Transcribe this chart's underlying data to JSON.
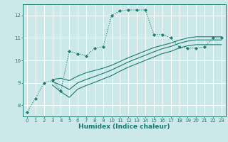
{
  "xlabel": "Humidex (Indice chaleur)",
  "bg_color": "#cce8e8",
  "grid_color": "#ffffff",
  "line_color": "#1a7a6e",
  "xlim": [
    -0.5,
    23.5
  ],
  "ylim": [
    7.5,
    12.5
  ],
  "yticks": [
    8,
    9,
    10,
    11,
    12
  ],
  "xticks": [
    0,
    1,
    2,
    3,
    4,
    5,
    6,
    7,
    8,
    9,
    10,
    11,
    12,
    13,
    14,
    15,
    16,
    17,
    18,
    19,
    20,
    21,
    22,
    23
  ],
  "series1_x": [
    0,
    1,
    2,
    3,
    4,
    5,
    6,
    7,
    8,
    9,
    10,
    11,
    12,
    13,
    14,
    15,
    16,
    17,
    18,
    19,
    20,
    21,
    22,
    23
  ],
  "series1_y": [
    7.7,
    8.3,
    9.0,
    9.1,
    8.65,
    10.4,
    10.3,
    10.2,
    10.55,
    10.6,
    12.0,
    12.2,
    12.25,
    12.25,
    12.25,
    11.15,
    11.15,
    11.0,
    10.6,
    10.55,
    10.55,
    10.6,
    11.0,
    11.0
  ],
  "series2_x": [
    3,
    4,
    5,
    6,
    7,
    8,
    9,
    10,
    11,
    12,
    13,
    14,
    15,
    16,
    17,
    18,
    19,
    20,
    21,
    22,
    23
  ],
  "series2_y": [
    9.15,
    9.2,
    9.1,
    9.3,
    9.45,
    9.55,
    9.65,
    9.78,
    9.95,
    10.12,
    10.27,
    10.42,
    10.57,
    10.67,
    10.77,
    10.9,
    11.0,
    11.05,
    11.05,
    11.05,
    11.05
  ],
  "series3_x": [
    3,
    4,
    5,
    6,
    7,
    8,
    9,
    10,
    11,
    12,
    13,
    14,
    15,
    16,
    17,
    18,
    19,
    20,
    21,
    22,
    23
  ],
  "series3_y": [
    9.05,
    8.9,
    8.7,
    9.0,
    9.15,
    9.28,
    9.42,
    9.57,
    9.75,
    9.93,
    10.08,
    10.23,
    10.38,
    10.52,
    10.62,
    10.76,
    10.86,
    10.91,
    10.91,
    10.91,
    10.91
  ],
  "series4_x": [
    3,
    4,
    5,
    6,
    7,
    8,
    9,
    10,
    11,
    12,
    13,
    14,
    15,
    16,
    17,
    18,
    19,
    20,
    21,
    22,
    23
  ],
  "series4_y": [
    8.9,
    8.6,
    8.35,
    8.72,
    8.88,
    9.02,
    9.17,
    9.32,
    9.52,
    9.7,
    9.85,
    10.0,
    10.15,
    10.3,
    10.4,
    10.55,
    10.65,
    10.7,
    10.7,
    10.7,
    10.7
  ]
}
